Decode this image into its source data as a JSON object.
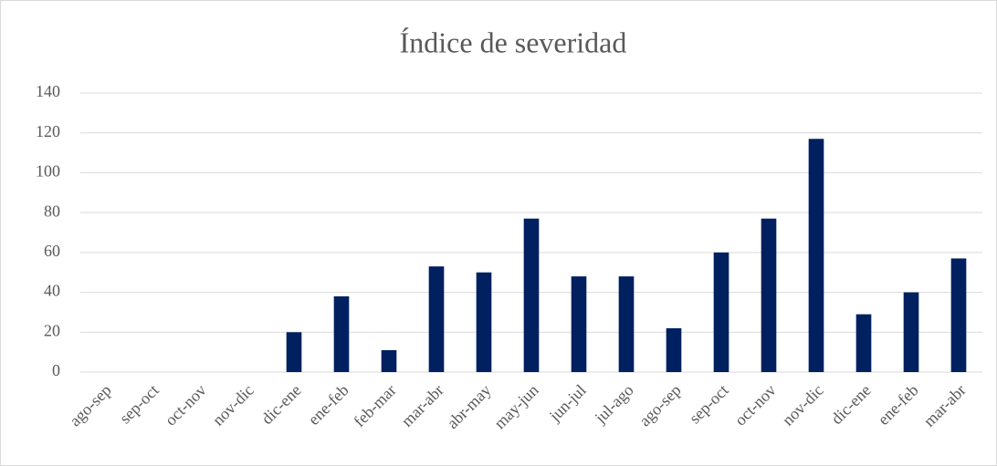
{
  "chart_data": {
    "type": "bar",
    "title": "Índice de severidad",
    "categories": [
      "ago-sep",
      "sep-oct",
      "oct-nov",
      "nov-dic",
      "dic-ene",
      "ene-feb",
      "feb-mar",
      "mar-abr",
      "abr-may",
      "may-jun",
      "jun-jul",
      "jul-ago",
      "ago-sep",
      "sep-oct",
      "oct-nov",
      "nov-dic",
      "dic-ene",
      "ene-feb",
      "mar-abr"
    ],
    "values": [
      0,
      0,
      0,
      0,
      20,
      38,
      11,
      53,
      50,
      77,
      48,
      48,
      22,
      60,
      77,
      117,
      29,
      40,
      57
    ],
    "color": "#002060",
    "ylim": [
      0,
      140
    ],
    "yticks": [
      0,
      20,
      40,
      60,
      80,
      100,
      120,
      140
    ],
    "grid": true
  }
}
